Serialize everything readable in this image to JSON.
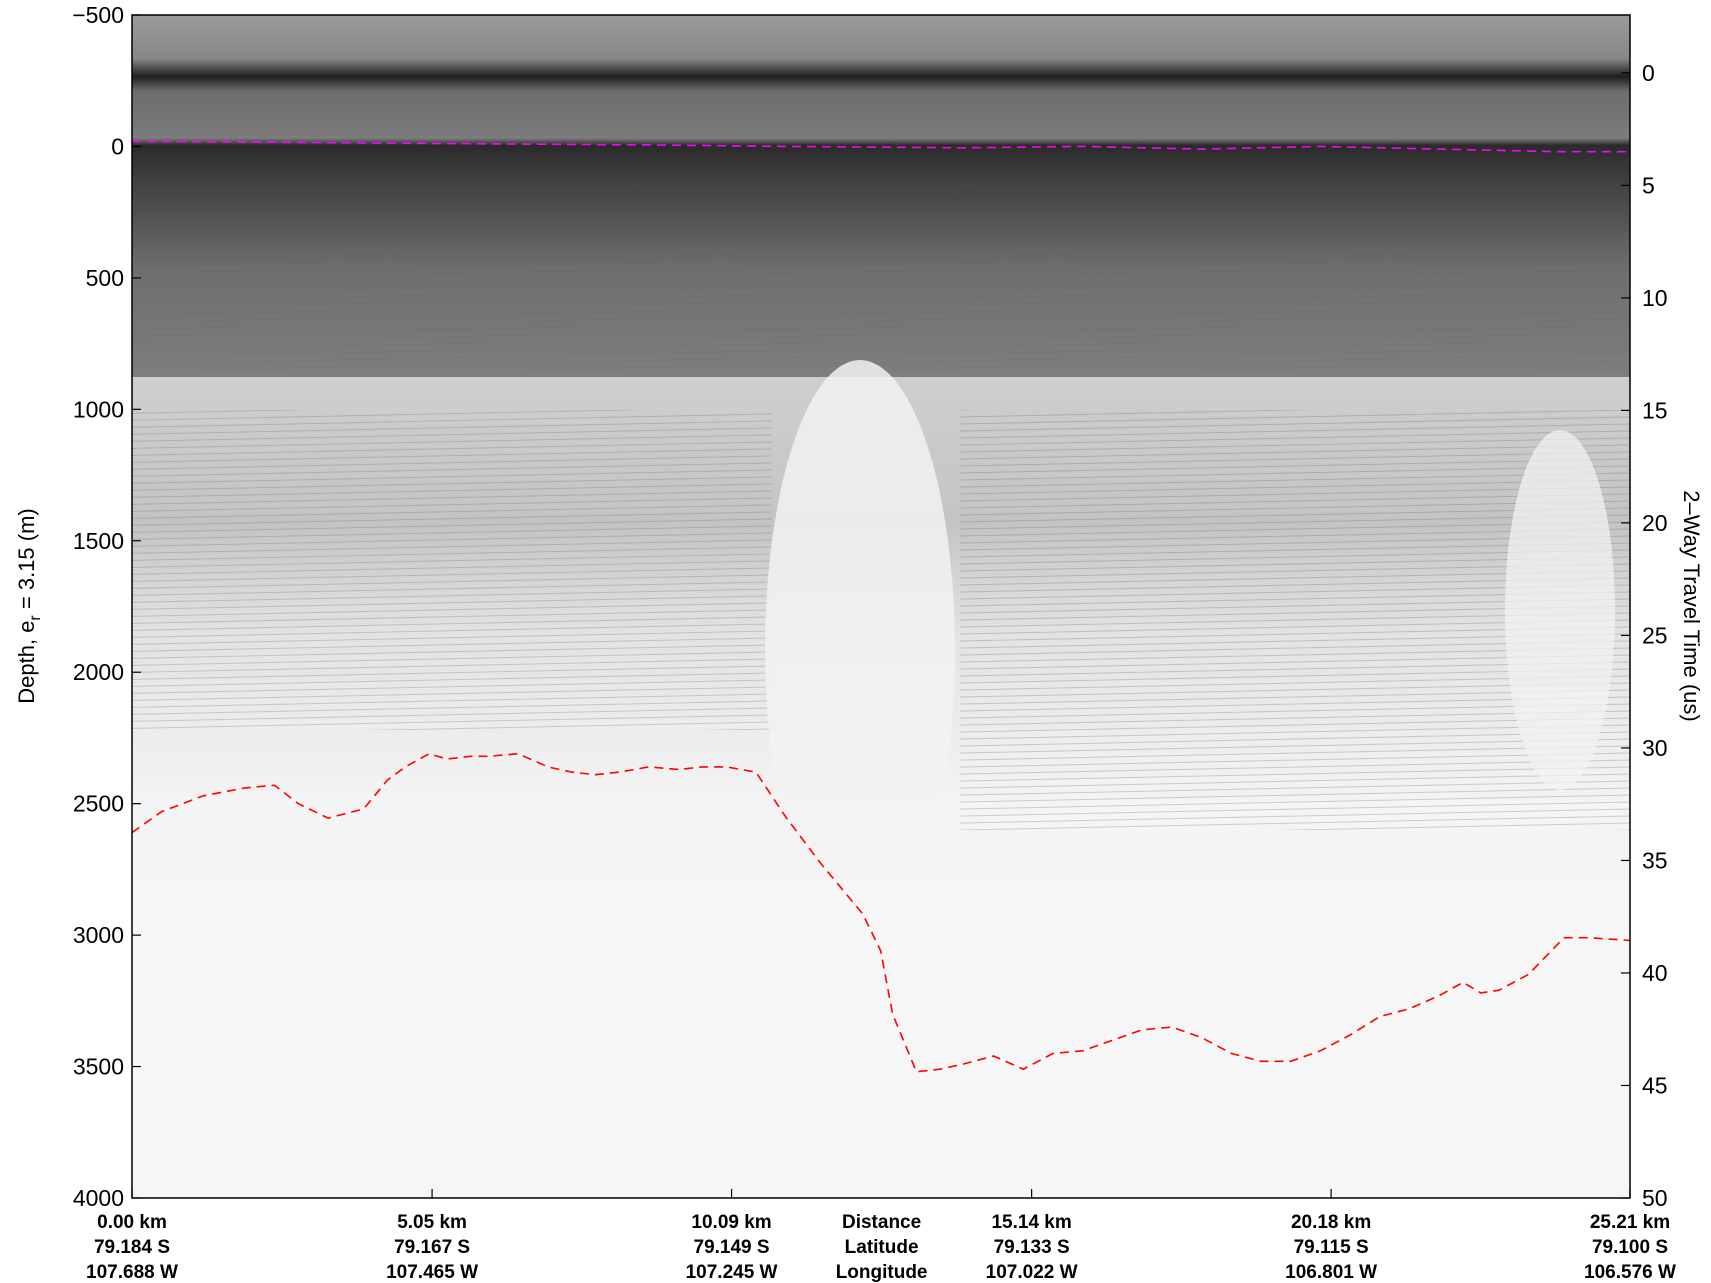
{
  "chart_data": {
    "type": "line",
    "left_axis": {
      "label_prefix": "Depth, e",
      "label_subscript": "r",
      "label_suffix": " = 3.15 (m)",
      "ylim": [
        -500,
        4000
      ],
      "ticks": [
        -500,
        0,
        500,
        1000,
        1500,
        2000,
        2500,
        3000,
        3500,
        4000
      ],
      "tick_labels": [
        "−500",
        "0",
        "500",
        "1000",
        "1500",
        "2000",
        "2500",
        "3000",
        "3500",
        "4000"
      ],
      "reversed": true
    },
    "right_axis": {
      "label": "2–Way Travel Time (us)",
      "ticks": [
        0,
        5,
        10,
        15,
        20,
        25,
        30,
        35,
        40,
        45,
        50
      ],
      "tick_labels": [
        "0",
        "5",
        "10",
        "15",
        "20",
        "25",
        "30",
        "35",
        "40",
        "45",
        "50"
      ],
      "depth_at_zero_time": -280,
      "meters_per_us": 85.6
    },
    "x_axis": {
      "xlim": [
        0,
        25.21
      ],
      "ticks": [
        {
          "x": 0.0,
          "distance": "0.00 km",
          "latitude": "79.184 S",
          "longitude": "107.688 W"
        },
        {
          "x": 5.05,
          "distance": "5.05 km",
          "latitude": "79.167 S",
          "longitude": "107.465 W"
        },
        {
          "x": 10.09,
          "distance": "10.09 km",
          "latitude": "79.149 S",
          "longitude": "107.245 W"
        },
        {
          "x": 15.14,
          "distance": "15.14 km",
          "latitude": "79.133 S",
          "longitude": "107.022 W"
        },
        {
          "x": 20.18,
          "distance": "20.18 km",
          "latitude": "79.115 S",
          "longitude": "106.801 W"
        },
        {
          "x": 25.21,
          "distance": "25.21 km",
          "latitude": "79.100 S",
          "longitude": "106.576 W"
        }
      ],
      "legend_labels": [
        "Distance",
        "Latitude",
        "Longitude"
      ]
    },
    "series": [
      {
        "color": "#ff00ff",
        "style": "dashed",
        "x": [
          0,
          3,
          6,
          9,
          11,
          14,
          16,
          18,
          20,
          22,
          24,
          25.21
        ],
        "y": [
          -20,
          -15,
          -10,
          -5,
          0,
          5,
          0,
          10,
          0,
          10,
          20,
          20
        ]
      },
      {
        "color": "#ff0000",
        "style": "dashed",
        "x": [
          0,
          0.5,
          1.2,
          1.9,
          2.4,
          2.8,
          3.3,
          3.9,
          4.3,
          4.6,
          5.0,
          5.3,
          5.7,
          6.0,
          6.5,
          7.0,
          7.4,
          7.8,
          8.2,
          8.7,
          9.2,
          9.6,
          10.0,
          10.5,
          11.0,
          11.6,
          12.3,
          12.6,
          12.8,
          13.2,
          13.6,
          14.0,
          14.5,
          15.0,
          15.5,
          16.0,
          16.5,
          17.0,
          17.5,
          18.0,
          18.5,
          19.0,
          19.5,
          20.0,
          20.5,
          21.0,
          21.5,
          22.0,
          22.4,
          22.7,
          23.0,
          23.5,
          23.8,
          24.1,
          24.5,
          25.21
        ],
        "y": [
          2610,
          2530,
          2470,
          2440,
          2430,
          2500,
          2555,
          2520,
          2410,
          2360,
          2310,
          2330,
          2320,
          2320,
          2310,
          2360,
          2380,
          2390,
          2380,
          2360,
          2370,
          2360,
          2360,
          2380,
          2550,
          2730,
          2920,
          3060,
          3300,
          3520,
          3510,
          3490,
          3460,
          3510,
          3450,
          3440,
          3400,
          3360,
          3350,
          3390,
          3450,
          3480,
          3480,
          3440,
          3380,
          3310,
          3280,
          3230,
          3180,
          3220,
          3210,
          3150,
          3080,
          3010,
          3010,
          3020
        ]
      }
    ]
  }
}
